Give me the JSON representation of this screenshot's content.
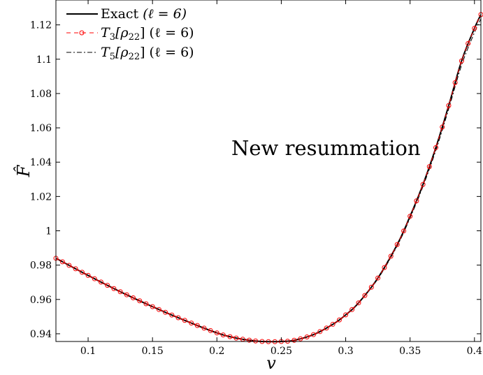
{
  "chart_data": {
    "type": "line",
    "title": "",
    "xlabel": "v",
    "ylabel": "F̂",
    "xlim": [
      0.075,
      0.405
    ],
    "ylim": [
      0.9355,
      1.1345
    ],
    "xticks": [
      0.1,
      0.15,
      0.2,
      0.25,
      0.3,
      0.35,
      0.4
    ],
    "xtick_labels": [
      "0.1",
      "0.15",
      "0.2",
      "0.25",
      "0.3",
      "0.35",
      "0.4"
    ],
    "yticks": [
      0.94,
      0.96,
      0.98,
      1.0,
      1.02,
      1.04,
      1.06,
      1.08,
      1.1,
      1.12
    ],
    "ytick_labels": [
      "0.94",
      "0.96",
      "0.98",
      "1",
      "1.02",
      "1.04",
      "1.06",
      "1.08",
      "1.1",
      "1.12"
    ],
    "grid": false,
    "legend_position": "top-left",
    "annotation": "New resummation",
    "legend": [
      {
        "series": "Exact",
        "label": "Exact (ℓ = 6)",
        "prefix": "Exact",
        "math": "(ℓ = 6)"
      },
      {
        "series": "T3",
        "label": "T3[ρ22] (ℓ = 6)",
        "prefix": "T",
        "sub": "3",
        "mid": "[ρ",
        "sub2": "22",
        "suffix": "] (ℓ = 6)"
      },
      {
        "series": "T5",
        "label": "T5[ρ22] (ℓ = 6)",
        "prefix": "T",
        "sub": "5",
        "mid": "[ρ",
        "sub2": "22",
        "suffix": "] (ℓ = 6)"
      }
    ],
    "series_style": {
      "Exact": {
        "color": "#000000",
        "dash": "solid",
        "marker": "none"
      },
      "T3": {
        "color": "#ff0000",
        "dash": "dashed",
        "marker": "circle"
      },
      "T5": {
        "color": "#000000",
        "dash": "dashdot",
        "marker": "none"
      }
    },
    "x": [
      0.075,
      0.1,
      0.125,
      0.15,
      0.175,
      0.2,
      0.215,
      0.23,
      0.24,
      0.25,
      0.26,
      0.275,
      0.29,
      0.3,
      0.31,
      0.325,
      0.34,
      0.35,
      0.36,
      0.37,
      0.38,
      0.39,
      0.4,
      0.405
    ],
    "series": [
      {
        "name": "Exact",
        "values": [
          0.984,
          0.974,
          0.9645,
          0.9558,
          0.9478,
          0.9405,
          0.9375,
          0.9358,
          0.9354,
          0.9355,
          0.9362,
          0.9395,
          0.9455,
          0.951,
          0.958,
          0.9725,
          0.992,
          1.0085,
          1.027,
          1.0485,
          1.073,
          1.099,
          1.118,
          1.126
        ]
      },
      {
        "name": "T3",
        "values": [
          0.984,
          0.974,
          0.9645,
          0.9558,
          0.9478,
          0.9405,
          0.9375,
          0.9358,
          0.9354,
          0.9355,
          0.9362,
          0.9395,
          0.9455,
          0.951,
          0.958,
          0.9725,
          0.992,
          1.0085,
          1.027,
          1.0485,
          1.073,
          1.099,
          1.118,
          1.126
        ]
      },
      {
        "name": "T5",
        "values": [
          0.984,
          0.974,
          0.9645,
          0.9558,
          0.9478,
          0.9405,
          0.9375,
          0.9358,
          0.9354,
          0.9355,
          0.9362,
          0.9395,
          0.9455,
          0.951,
          0.958,
          0.972,
          0.9912,
          1.0075,
          1.0258,
          1.0468,
          1.071,
          1.0965,
          1.1155,
          1.1235
        ]
      }
    ]
  }
}
